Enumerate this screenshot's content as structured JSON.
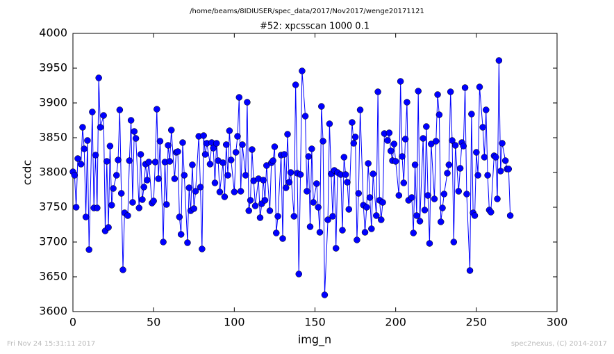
{
  "chart_data": {
    "type": "line",
    "title": "/home/beams/8IDIUSER/spec_data/2017/Nov2017/wenge20171121",
    "subtitle": "#52: xpcsscan 1000 0.1",
    "x_label": "img_n",
    "y_label": "ccdc",
    "footer_left": "Fri Nov 24 15:31:11 2017",
    "footer_right": "spec2nexus, (C) 2014-2017",
    "xlim": [
      0,
      300
    ],
    "xticks": [
      0,
      50,
      100,
      150,
      200,
      250,
      300
    ],
    "ylim": [
      3600,
      4000
    ],
    "yticks": [
      3600,
      3650,
      3700,
      3750,
      3800,
      3850,
      3900,
      3950,
      4000
    ],
    "grid": false,
    "series": [
      {
        "name": "ccdc",
        "color": "#0000ff",
        "x": [
          0,
          1,
          2,
          3,
          5,
          6,
          7,
          8,
          9,
          10,
          12,
          13,
          14,
          15,
          16,
          17,
          19,
          20,
          21,
          22,
          23,
          24,
          25,
          27,
          28,
          29,
          30,
          31,
          32,
          34,
          35,
          36,
          37,
          38,
          39,
          41,
          42,
          43,
          44,
          45,
          46,
          47,
          49,
          50,
          51,
          52,
          53,
          54,
          56,
          57,
          58,
          59,
          60,
          61,
          63,
          64,
          65,
          66,
          67,
          68,
          69,
          71,
          72,
          73,
          74,
          75,
          76,
          78,
          79,
          80,
          81,
          82,
          83,
          85,
          86,
          87,
          88,
          89,
          90,
          91,
          93,
          94,
          95,
          96,
          97,
          98,
          100,
          101,
          102,
          103,
          104,
          105,
          107,
          108,
          109,
          110,
          111,
          112,
          113,
          115,
          116,
          117,
          118,
          119,
          120,
          122,
          123,
          124,
          125,
          126,
          127,
          129,
          130,
          131,
          132,
          133,
          134,
          135,
          137,
          138,
          139,
          140,
          141,
          142,
          144,
          145,
          146,
          147,
          148,
          149,
          151,
          152,
          153,
          154,
          155,
          156,
          158,
          159,
          160,
          161,
          162,
          163,
          164,
          166,
          167,
          168,
          169,
          170,
          171,
          173,
          174,
          175,
          176,
          177,
          178,
          180,
          181,
          182,
          183,
          184,
          185,
          186,
          188,
          189,
          190,
          191,
          192,
          193,
          195,
          196,
          197,
          198,
          199,
          200,
          202,
          203,
          204,
          205,
          206,
          207,
          208,
          210,
          211,
          212,
          213,
          214,
          215,
          217,
          218,
          219,
          220,
          221,
          222,
          224,
          225,
          226,
          227,
          228,
          229,
          230,
          232,
          233,
          234,
          235,
          236,
          237,
          239,
          240,
          241,
          242,
          243,
          244,
          246,
          247,
          248,
          249,
          250,
          251,
          252,
          254,
          255,
          256,
          257,
          258,
          259,
          261,
          262,
          263,
          264,
          265,
          266,
          268,
          269,
          270,
          271
        ],
        "values": [
          3801,
          3796,
          3750,
          3820,
          3812,
          3865,
          3834,
          3736,
          3846,
          3689,
          3887,
          3749,
          3825,
          3749,
          3936,
          3865,
          3882,
          3716,
          3816,
          3721,
          3838,
          3753,
          3777,
          3796,
          3818,
          3890,
          3770,
          3660,
          3742,
          3738,
          3817,
          3875,
          3757,
          3859,
          3849,
          3749,
          3826,
          3761,
          3779,
          3812,
          3789,
          3815,
          3756,
          3759,
          3815,
          3891,
          3791,
          3845,
          3700,
          3815,
          3754,
          3839,
          3816,
          3861,
          3791,
          3829,
          3830,
          3736,
          3711,
          3843,
          3796,
          3699,
          3778,
          3745,
          3811,
          3748,
          3773,
          3852,
          3779,
          3690,
          3853,
          3826,
          3842,
          3812,
          3843,
          3835,
          3785,
          3842,
          3817,
          3772,
          3814,
          3765,
          3840,
          3796,
          3860,
          3818,
          3772,
          3829,
          3852,
          3908,
          3773,
          3840,
          3796,
          3901,
          3745,
          3760,
          3833,
          3788,
          3752,
          3791,
          3735,
          3755,
          3789,
          3760,
          3810,
          3745,
          3814,
          3817,
          3837,
          3713,
          3737,
          3825,
          3705,
          3826,
          3778,
          3855,
          3786,
          3800,
          3737,
          3926,
          3799,
          3654,
          3797,
          3946,
          3881,
          3773,
          3823,
          3722,
          3834,
          3757,
          3784,
          3750,
          3714,
          3895,
          3845,
          3624,
          3732,
          3870,
          3798,
          3737,
          3803,
          3691,
          3800,
          3797,
          3717,
          3822,
          3797,
          3786,
          3747,
          3872,
          3842,
          3851,
          3703,
          3770,
          3890,
          3753,
          3714,
          3750,
          3813,
          3764,
          3719,
          3798,
          3738,
          3916,
          3760,
          3732,
          3757,
          3856,
          3846,
          3857,
          3831,
          3817,
          3841,
          3816,
          3767,
          3931,
          3823,
          3785,
          3848,
          3901,
          3760,
          3764,
          3713,
          3811,
          3738,
          3917,
          3730,
          3849,
          3746,
          3866,
          3767,
          3698,
          3841,
          3762,
          3845,
          3912,
          3883,
          3729,
          3749,
          3769,
          3799,
          3811,
          3916,
          3846,
          3700,
          3839,
          3773,
          3806,
          3843,
          3838,
          3922,
          3769,
          3659,
          3884,
          3742,
          3738,
          3829,
          3796,
          3923,
          3865,
          3822,
          3890,
          3796,
          3746,
          3743,
          3824,
          3822,
          3762,
          3961,
          3802,
          3842,
          3817,
          3805,
          3805,
          3738
        ]
      }
    ]
  }
}
